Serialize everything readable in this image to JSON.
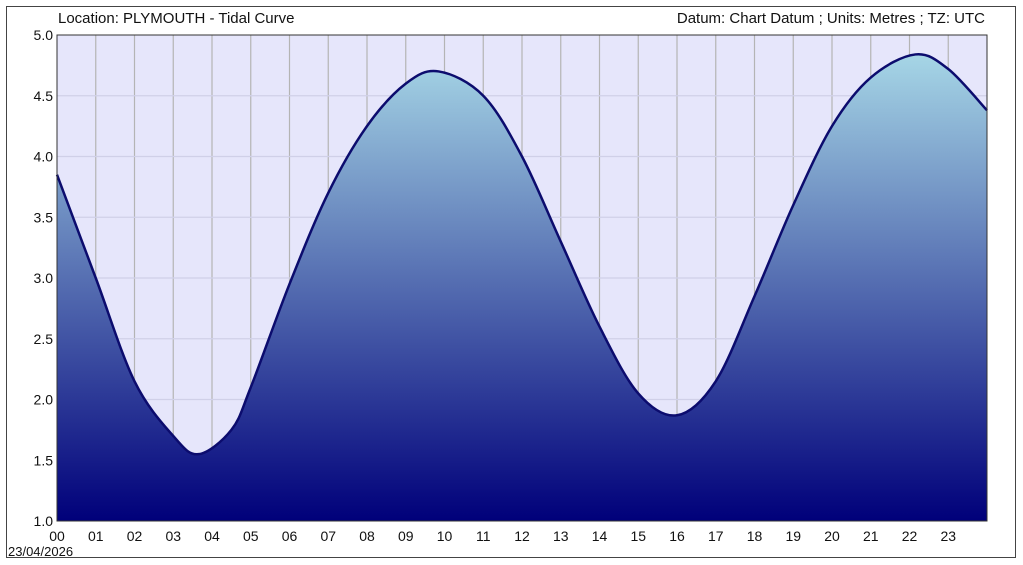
{
  "header": {
    "left": "Location: PLYMOUTH - Tidal Curve",
    "right": "Datum: Chart Datum ; Units: Metres ; TZ: UTC"
  },
  "date_label": "23/04/2026",
  "colors": {
    "plot_background": "#e6e6fb",
    "curve": "#0c0c6e",
    "fill_top": "#a6d6e6",
    "fill_bottom": "#00007a",
    "grid": "#b4b4b4"
  },
  "chart_data": {
    "type": "area",
    "title": "Location: PLYMOUTH - Tidal Curve",
    "xlabel": "",
    "ylabel": "",
    "x_ticks": [
      "00",
      "01",
      "02",
      "03",
      "04",
      "05",
      "06",
      "07",
      "08",
      "09",
      "10",
      "11",
      "12",
      "13",
      "14",
      "15",
      "16",
      "17",
      "18",
      "19",
      "20",
      "21",
      "22",
      "23"
    ],
    "y_ticks": [
      "1.0",
      "1.5",
      "2.0",
      "2.5",
      "3.0",
      "3.5",
      "4.0",
      "4.5",
      "5.0"
    ],
    "xlim": [
      0,
      24
    ],
    "ylim": [
      1.0,
      5.0
    ],
    "grid": true,
    "series": [
      {
        "x": [
          0.0,
          1.0,
          2.0,
          3.0,
          3.65,
          4.5,
          5.0,
          6.0,
          7.0,
          8.0,
          9.0,
          9.85,
          11.0,
          12.0,
          13.0,
          14.0,
          15.0,
          16.0,
          17.0,
          18.0,
          19.0,
          20.0,
          21.0,
          22.15,
          23.0,
          24.0
        ],
        "y": [
          3.85,
          3.0,
          2.15,
          1.7,
          1.55,
          1.75,
          2.1,
          2.95,
          3.7,
          4.25,
          4.6,
          4.7,
          4.5,
          4.0,
          3.3,
          2.6,
          2.05,
          1.87,
          2.15,
          2.85,
          3.6,
          4.25,
          4.65,
          4.84,
          4.72,
          4.38
        ]
      }
    ]
  }
}
